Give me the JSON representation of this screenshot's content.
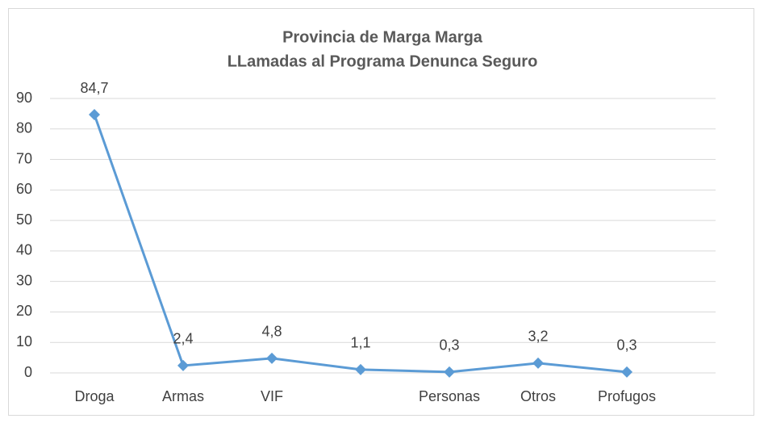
{
  "chart_data": {
    "type": "line",
    "title": "Provincia de Marga Marga",
    "subtitle": "LLamadas al Programa Denunca Seguro",
    "categories": [
      "Droga",
      "Armas",
      "VIF",
      null,
      "Personas",
      "Otros",
      "Profugos"
    ],
    "values": [
      84.7,
      2.4,
      4.8,
      1.1,
      0.3,
      3.2,
      0.3
    ],
    "value_labels": [
      "84,7",
      "2,4",
      "4,8",
      "1,1",
      "0,3",
      "3,2",
      "0,3"
    ],
    "color": "#5b9bd5",
    "ylim": [
      0,
      90
    ],
    "yticks": [
      0,
      10,
      20,
      30,
      40,
      50,
      60,
      70,
      80,
      90
    ],
    "grid": true
  }
}
